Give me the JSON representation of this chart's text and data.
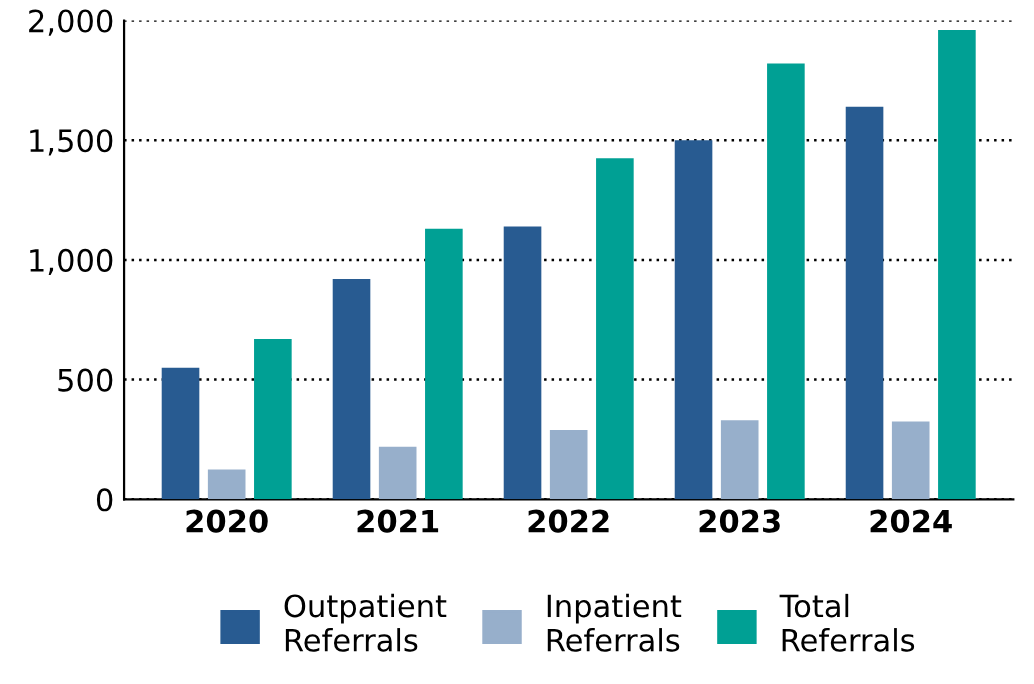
{
  "chart_data": {
    "type": "bar",
    "categories": [
      "2020",
      "2021",
      "2022",
      "2023",
      "2024"
    ],
    "series": [
      {
        "name": "Outpatient\nReferrals",
        "color": "#285b91",
        "values": [
          550,
          920,
          1140,
          1500,
          1640
        ]
      },
      {
        "name": "Inpatient\nReferrals",
        "color": "#97afcb",
        "values": [
          125,
          220,
          290,
          330,
          325
        ]
      },
      {
        "name": "Total\nReferrals",
        "color": "#00a094",
        "values": [
          670,
          1130,
          1425,
          1820,
          1960
        ]
      }
    ],
    "ylim": [
      0,
      2000
    ],
    "yticks": [
      0,
      {
        "value": 500,
        "label": "500"
      },
      {
        "value": 1000,
        "label": "1,000"
      },
      {
        "value": 1500,
        "label": "1,500"
      },
      {
        "value": 2000,
        "label": "2,000"
      }
    ],
    "grid": "y",
    "legend": "bottom"
  }
}
